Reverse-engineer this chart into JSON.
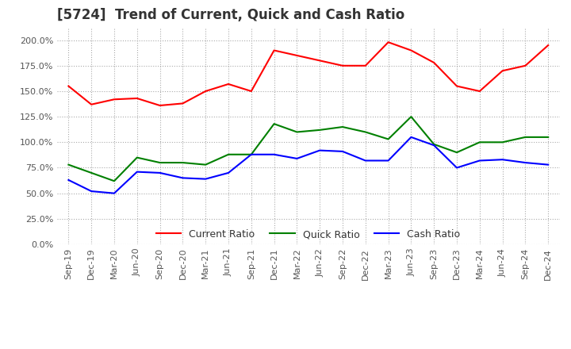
{
  "title": "[5724]  Trend of Current, Quick and Cash Ratio",
  "x_labels": [
    "Sep-19",
    "Dec-19",
    "Mar-20",
    "Jun-20",
    "Sep-20",
    "Dec-20",
    "Mar-21",
    "Jun-21",
    "Sep-21",
    "Dec-21",
    "Mar-22",
    "Jun-22",
    "Sep-22",
    "Dec-22",
    "Mar-23",
    "Jun-23",
    "Sep-23",
    "Dec-23",
    "Mar-24",
    "Jun-24",
    "Sep-24",
    "Dec-24"
  ],
  "current_ratio": [
    155.0,
    137.0,
    142.0,
    143.0,
    136.0,
    138.0,
    150.0,
    157.0,
    150.0,
    190.0,
    185.0,
    180.0,
    175.0,
    175.0,
    198.0,
    190.0,
    178.0,
    155.0,
    150.0,
    170.0,
    175.0,
    195.0
  ],
  "quick_ratio": [
    78.0,
    70.0,
    62.0,
    85.0,
    80.0,
    80.0,
    78.0,
    88.0,
    88.0,
    118.0,
    110.0,
    112.0,
    115.0,
    110.0,
    103.0,
    125.0,
    98.0,
    90.0,
    100.0,
    100.0,
    105.0,
    105.0
  ],
  "cash_ratio": [
    63.0,
    52.0,
    50.0,
    71.0,
    70.0,
    65.0,
    64.0,
    70.0,
    88.0,
    88.0,
    84.0,
    92.0,
    91.0,
    82.0,
    82.0,
    105.0,
    97.0,
    75.0,
    82.0,
    83.0,
    80.0,
    78.0
  ],
  "current_color": "#FF0000",
  "quick_color": "#008000",
  "cash_color": "#0000FF",
  "ylim": [
    0.0,
    212.0
  ],
  "yticks": [
    0.0,
    25.0,
    50.0,
    75.0,
    100.0,
    125.0,
    150.0,
    175.0,
    200.0
  ],
  "background_color": "#FFFFFF",
  "grid_color": "#AAAAAA",
  "title_fontsize": 12,
  "legend_fontsize": 9,
  "tick_fontsize": 8
}
